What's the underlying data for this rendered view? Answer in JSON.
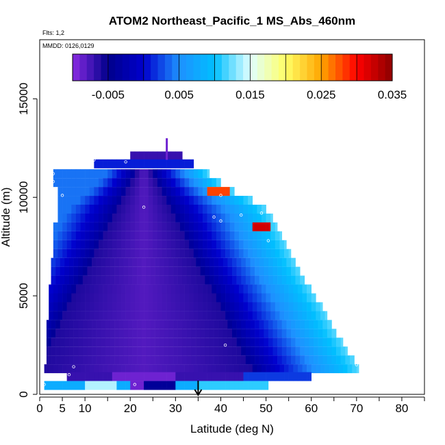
{
  "chart_data": {
    "type": "heatmap",
    "title": "ATOM2 Northeast_Pacific_1 MS_Abs_460nm",
    "flights_note": "Flts: 1,2",
    "dates_note": "MMDD: 0126,0129",
    "xlabel": "Latitude (deg N)",
    "ylabel": "Altitude (m)",
    "xlim": [
      0,
      85
    ],
    "ylim": [
      0,
      18000
    ],
    "x_ticks": [
      0,
      5,
      10,
      20,
      30,
      40,
      50,
      60,
      70,
      80
    ],
    "x_tick_labels": [
      "0",
      "5",
      "10",
      "20",
      "30",
      "40",
      "50",
      "60",
      "70",
      "80"
    ],
    "x_minor_ticks": [
      15,
      25,
      35,
      45,
      55,
      65,
      75,
      85
    ],
    "y_ticks": [
      0,
      5000,
      10000,
      15000
    ],
    "y_tick_labels": [
      "0",
      "5000",
      "10000",
      "15000"
    ],
    "colorbar": {
      "range": [
        -0.01,
        0.035
      ],
      "ticks": [
        -0.005,
        0.005,
        0.015,
        0.025,
        0.035
      ],
      "tick_labels": [
        "-0.005",
        "0.005",
        "0.015",
        "0.025",
        "0.035"
      ],
      "colors": [
        "#8a2be2",
        "#00008b",
        "#0000cd",
        "#1e90ff",
        "#00bfff",
        "#e0ffff",
        "#ffff66",
        "#ffa500",
        "#ff0000",
        "#8b0000"
      ]
    },
    "marker_arrow_latitude": 35,
    "slices": [
      {
        "alt": 12100,
        "lat_min": 20,
        "lat_max": 31.5,
        "mode": "uniform",
        "c": -0.007
      },
      {
        "alt": 11700,
        "lat_min": 12,
        "lat_max": 34,
        "mode": "uniform",
        "c": 0.001
      },
      {
        "alt": 11200,
        "lat_min": 3,
        "lat_max": 37.5,
        "mode": "band",
        "apex": 23,
        "hw": 2,
        "edge_hi": 37.5,
        "hot": 0
      },
      {
        "alt": 10750,
        "lat_min": 3,
        "lat_max": 40,
        "mode": "band",
        "apex": 23,
        "hw": 3,
        "edge_hi": 40,
        "hot": 0
      },
      {
        "alt": 10300,
        "lat_min": 4,
        "lat_max": 43,
        "mode": "band",
        "apex": 23,
        "hw": 4,
        "edge_hi": 43,
        "hot": 0.028
      },
      {
        "alt": 9850,
        "lat_min": 4,
        "lat_max": 47,
        "mode": "band",
        "apex": 23,
        "hw": 5,
        "edge_hi": 47,
        "hot": 0
      },
      {
        "alt": 9400,
        "lat_min": 4,
        "lat_max": 50,
        "mode": "band",
        "apex": 23,
        "hw": 6,
        "edge_hi": 50,
        "hot": 0
      },
      {
        "alt": 8950,
        "lat_min": 4,
        "lat_max": 51.5,
        "mode": "band",
        "apex": 23,
        "hw": 7,
        "edge_hi": 51.5,
        "hot": 0
      },
      {
        "alt": 8500,
        "lat_min": 3,
        "lat_max": 52.5,
        "mode": "band",
        "apex": 23,
        "hw": 8,
        "edge_hi": 52.5,
        "hot": 0.032
      },
      {
        "alt": 8050,
        "lat_min": 3,
        "lat_max": 53.5,
        "mode": "band",
        "apex": 23,
        "hw": 9,
        "edge_hi": 53.5,
        "hot": 0
      },
      {
        "alt": 7600,
        "lat_min": 3,
        "lat_max": 54.5,
        "mode": "band",
        "apex": 23,
        "hw": 10,
        "edge_hi": 54.5,
        "hot": 0
      },
      {
        "alt": 7150,
        "lat_min": 3,
        "lat_max": 55.5,
        "mode": "band",
        "apex": 23,
        "hw": 11,
        "edge_hi": 55.5,
        "hot": 0
      },
      {
        "alt": 6700,
        "lat_min": 2.5,
        "lat_max": 56.5,
        "mode": "band",
        "apex": 23,
        "hw": 12,
        "edge_hi": 56.5,
        "hot": 0
      },
      {
        "alt": 6250,
        "lat_min": 2.5,
        "lat_max": 57.5,
        "mode": "band",
        "apex": 23,
        "hw": 13,
        "edge_hi": 57.5,
        "hot": 0
      },
      {
        "alt": 5800,
        "lat_min": 2.5,
        "lat_max": 58.5,
        "mode": "band",
        "apex": 23,
        "hw": 14,
        "edge_hi": 58.5,
        "hot": 0
      },
      {
        "alt": 5350,
        "lat_min": 2,
        "lat_max": 60,
        "mode": "band",
        "apex": 23,
        "hw": 15,
        "edge_hi": 60,
        "hot": 0
      },
      {
        "alt": 4900,
        "lat_min": 2,
        "lat_max": 61,
        "mode": "band",
        "apex": 23,
        "hw": 16,
        "edge_hi": 61,
        "hot": 0
      },
      {
        "alt": 4450,
        "lat_min": 2,
        "lat_max": 62.5,
        "mode": "band",
        "apex": 23,
        "hw": 17,
        "edge_hi": 62.5,
        "hot": 0
      },
      {
        "alt": 4000,
        "lat_min": 2,
        "lat_max": 63.5,
        "mode": "band",
        "apex": 23,
        "hw": 18,
        "edge_hi": 63.5,
        "hot": 0
      },
      {
        "alt": 3550,
        "lat_min": 1.5,
        "lat_max": 64.5,
        "mode": "band",
        "apex": 23,
        "hw": 19,
        "edge_hi": 64.5,
        "hot": 0
      },
      {
        "alt": 3100,
        "lat_min": 1.5,
        "lat_max": 65.5,
        "mode": "band",
        "apex": 23,
        "hw": 20,
        "edge_hi": 65.5,
        "hot": 0
      },
      {
        "alt": 2650,
        "lat_min": 1.5,
        "lat_max": 67,
        "mode": "band",
        "apex": 23,
        "hw": 21,
        "edge_hi": 67,
        "hot": 0
      },
      {
        "alt": 2200,
        "lat_min": 1.5,
        "lat_max": 68,
        "mode": "band",
        "apex": 23,
        "hw": 22,
        "edge_hi": 68,
        "hot": 0
      },
      {
        "alt": 1750,
        "lat_min": 1.5,
        "lat_max": 69.5,
        "mode": "band",
        "apex": 23,
        "hw": 23,
        "edge_hi": 69.5,
        "hot": 0
      },
      {
        "alt": 1300,
        "lat_min": 1,
        "lat_max": 70.5,
        "mode": "band",
        "apex": 23,
        "hw": 24,
        "edge_hi": 70.5,
        "hot": 0
      },
      {
        "alt": 900,
        "lat_min": 6,
        "lat_max": 60,
        "mode": "low",
        "c": -0.007
      },
      {
        "alt": 450,
        "lat_min": 1,
        "lat_max": 50.5,
        "mode": "surface",
        "c": 0.008
      }
    ],
    "spike": {
      "lat": 28,
      "alt_min": 11900,
      "alt_max": 13000,
      "c": -0.009
    },
    "sample_points": [
      {
        "lat": 1,
        "alt": 500
      },
      {
        "lat": 6.5,
        "alt": 1000
      },
      {
        "lat": 7.5,
        "alt": 1400
      },
      {
        "lat": 21,
        "alt": 500
      },
      {
        "lat": 3,
        "alt": 11200
      },
      {
        "lat": 3,
        "alt": 10800
      },
      {
        "lat": 5,
        "alt": 10100
      },
      {
        "lat": 12,
        "alt": 11900
      },
      {
        "lat": 19,
        "alt": 11800
      },
      {
        "lat": 23,
        "alt": 9500
      },
      {
        "lat": 40,
        "alt": 10100
      },
      {
        "lat": 40,
        "alt": 8800
      },
      {
        "lat": 44.5,
        "alt": 9100
      },
      {
        "lat": 49,
        "alt": 9200
      },
      {
        "lat": 50.5,
        "alt": 7800
      },
      {
        "lat": 41,
        "alt": 2500
      },
      {
        "lat": 70,
        "alt": 1500
      },
      {
        "lat": 38.5,
        "alt": 9000
      }
    ]
  }
}
